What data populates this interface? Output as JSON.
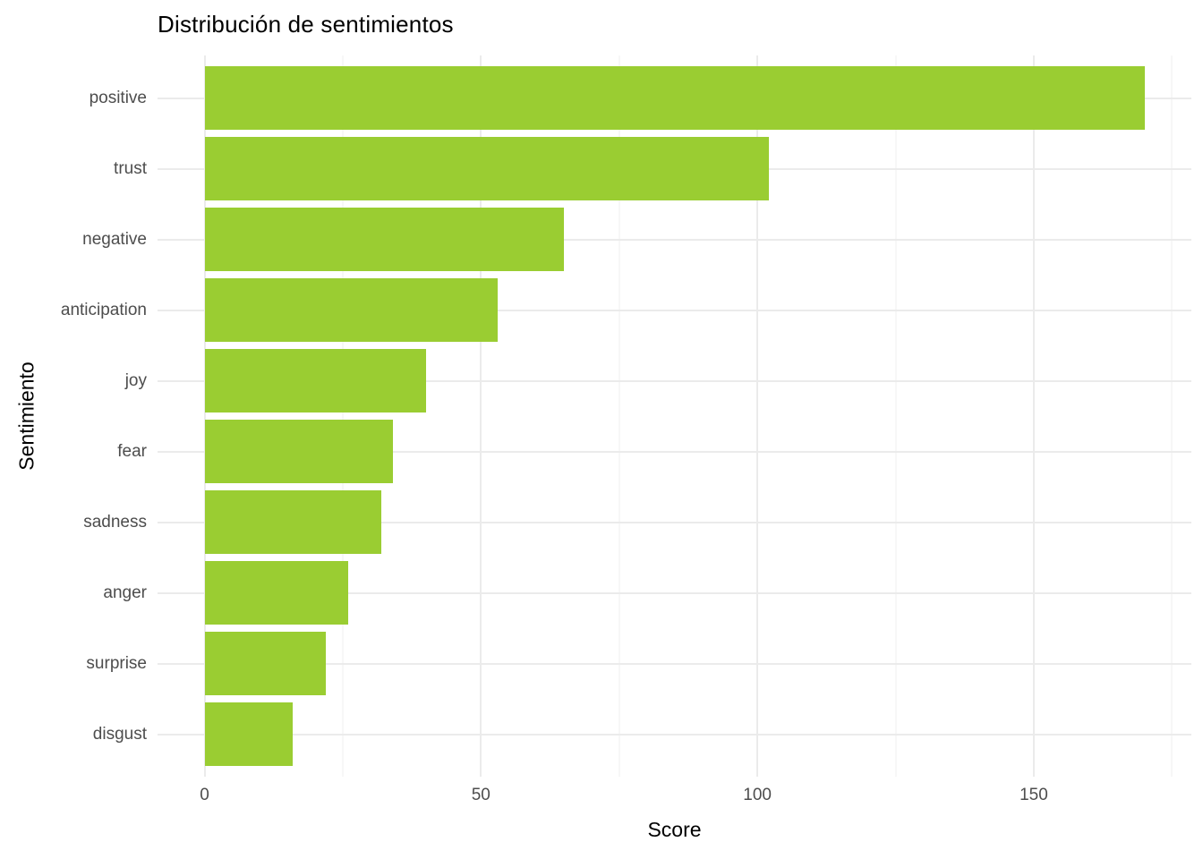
{
  "chart_data": {
    "type": "bar",
    "orientation": "horizontal",
    "title": "Distribución de sentimientos",
    "xlabel": "Score",
    "ylabel": "Sentimiento",
    "categories": [
      "positive",
      "trust",
      "negative",
      "anticipation",
      "joy",
      "fear",
      "sadness",
      "anger",
      "surprise",
      "disgust"
    ],
    "values": [
      170,
      102,
      65,
      53,
      40,
      34,
      32,
      26,
      22,
      16
    ],
    "x_ticks": [
      0,
      50,
      100,
      150
    ],
    "x_minor_ticks": [
      25,
      75,
      125,
      175
    ],
    "x_domain": [
      -8.5,
      178.5
    ],
    "grid": true,
    "legend_position": "none",
    "colors": {
      "bar_fill": "#9ACD32",
      "grid_major": "#EBEBEB",
      "grid_minor": "#EFEFEF",
      "axis_text": "#4D4D4D",
      "title_text": "#000000",
      "background": "#FFFFFF"
    }
  }
}
